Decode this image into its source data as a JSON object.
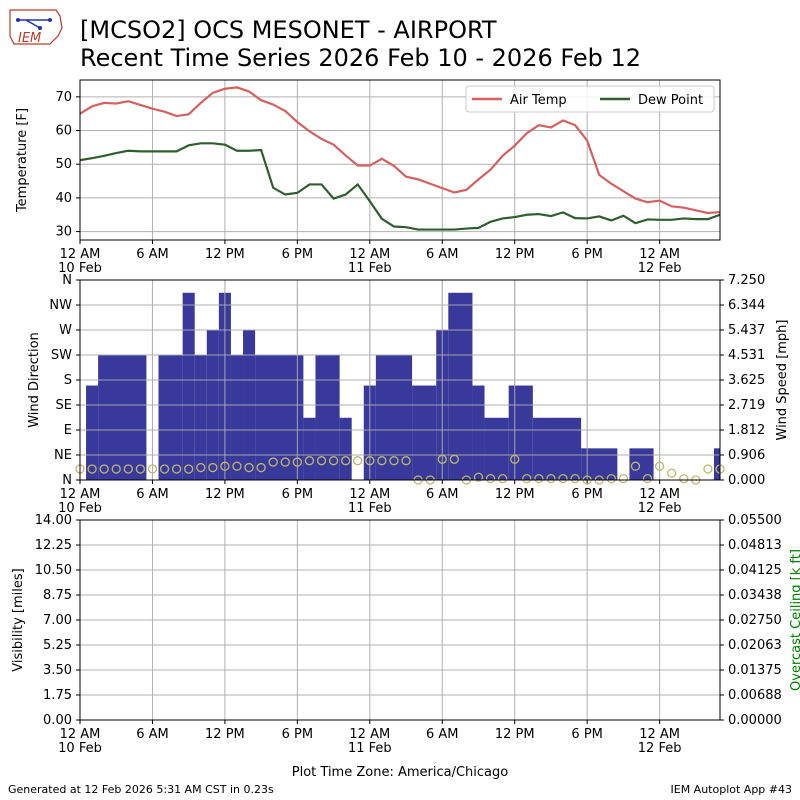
{
  "header": {
    "title_line1": "[MCSO2] OCS MESONET - AIRPORT",
    "title_line2": "Recent Time Series 2026 Feb 10 - 2026 Feb 12",
    "logo_text": "IEM"
  },
  "footer": {
    "generated": "Generated at 12 Feb 2026 5:31 AM CST in 0.23s",
    "app": "IEM Autoplot App #43",
    "timezone_label": "Plot Time Zone: America/Chicago"
  },
  "colors": {
    "air_temp": "#d65f5f",
    "dew_point": "#2e5e2e",
    "wind_dir": "#333399",
    "wind_speed_marker": "#bdb76b",
    "ceiling_axis": "#008000",
    "grid": "#b0b0b0"
  },
  "chart_data": [
    {
      "type": "line",
      "title": "",
      "xlabel": "",
      "ylabel": "Temperature [F]",
      "xlim": [
        0,
        53
      ],
      "ylim": [
        27.5,
        75
      ],
      "y_ticks": [
        30,
        40,
        50,
        60,
        70
      ],
      "x_ticks": [
        {
          "x": 0,
          "label": "12 AM",
          "sub": "10 Feb"
        },
        {
          "x": 6,
          "label": "6 AM",
          "sub": ""
        },
        {
          "x": 12,
          "label": "12 PM",
          "sub": ""
        },
        {
          "x": 18,
          "label": "6 PM",
          "sub": ""
        },
        {
          "x": 24,
          "label": "12 AM",
          "sub": "11 Feb"
        },
        {
          "x": 30,
          "label": "6 AM",
          "sub": ""
        },
        {
          "x": 36,
          "label": "12 PM",
          "sub": ""
        },
        {
          "x": 42,
          "label": "6 PM",
          "sub": ""
        },
        {
          "x": 48,
          "label": "12 AM",
          "sub": "12 Feb"
        }
      ],
      "legend": "top-right",
      "grid": true,
      "series": [
        {
          "name": "Air Temp",
          "x": [
            0,
            1,
            2,
            3,
            4,
            5,
            6,
            7,
            8,
            9,
            10,
            11,
            12,
            13,
            14,
            15,
            16,
            17,
            18,
            19,
            20,
            21,
            22,
            23,
            24,
            25,
            26,
            27,
            28,
            29,
            30,
            31,
            32,
            33,
            34,
            35,
            36,
            37,
            38,
            39,
            40,
            41,
            42,
            43,
            44,
            45,
            46,
            47,
            48,
            49,
            50,
            51,
            52,
            53
          ],
          "y": [
            65.0,
            67.2,
            68.2,
            68.0,
            68.7,
            67.6,
            66.5,
            65.6,
            64.3,
            64.8,
            68.2,
            71.2,
            72.4,
            72.8,
            71.6,
            69.0,
            67.7,
            65.8,
            62.5,
            59.8,
            57.5,
            55.8,
            52.6,
            49.6,
            49.6,
            51.6,
            49.5,
            46.3,
            45.5,
            44.2,
            42.9,
            41.6,
            42.4,
            45.5,
            48.4,
            52.5,
            55.5,
            59.2,
            61.6,
            60.9,
            63.0,
            61.6,
            57.0,
            46.8,
            44.2,
            42.0,
            39.8,
            38.7,
            39.2,
            37.5,
            37.1,
            36.3,
            35.5,
            35.8
          ]
        },
        {
          "name": "Dew Point",
          "x": [
            0,
            1,
            2,
            3,
            4,
            5,
            6,
            7,
            8,
            9,
            10,
            11,
            12,
            13,
            14,
            15,
            16,
            17,
            18,
            19,
            20,
            21,
            22,
            23,
            24,
            25,
            26,
            27,
            28,
            29,
            30,
            31,
            32,
            33,
            34,
            35,
            36,
            37,
            38,
            39,
            40,
            41,
            42,
            43,
            44,
            45,
            46,
            47,
            48,
            49,
            50,
            51,
            52,
            53
          ],
          "y": [
            51.2,
            51.8,
            52.5,
            53.3,
            54.0,
            53.8,
            53.8,
            53.8,
            53.8,
            55.6,
            56.2,
            56.2,
            55.8,
            54.0,
            54.0,
            54.2,
            43.0,
            41.0,
            41.5,
            44.0,
            44.0,
            39.8,
            41.0,
            44.0,
            39.0,
            33.8,
            31.5,
            31.3,
            30.6,
            30.6,
            30.6,
            30.6,
            30.9,
            31.1,
            32.9,
            33.9,
            34.3,
            35.0,
            35.2,
            34.6,
            35.7,
            34.0,
            33.9,
            34.5,
            33.3,
            34.7,
            32.5,
            33.6,
            33.5,
            33.5,
            33.9,
            33.7,
            33.7,
            35.0
          ]
        }
      ]
    },
    {
      "type": "bar",
      "title": "",
      "xlabel": "",
      "ylabel": "Wind Direction",
      "ylabel_right": "Wind Speed [mph]",
      "xlim": [
        0,
        53
      ],
      "ylim": [
        0,
        360
      ],
      "y_ticks": [
        0,
        45,
        90,
        135,
        180,
        225,
        270,
        315,
        360
      ],
      "y_tick_labels": [
        "N",
        "NE",
        "E",
        "SE",
        "S",
        "SW",
        "W",
        "NW",
        "N"
      ],
      "y2lim": [
        0,
        7.25
      ],
      "y2_tick_labels": [
        "0.000",
        "0.906",
        "1.812",
        "2.719",
        "3.625",
        "4.531",
        "5.437",
        "6.344",
        "7.250"
      ],
      "x_ticks": [
        {
          "x": 0,
          "label": "12 AM",
          "sub": "10 Feb"
        },
        {
          "x": 6,
          "label": "6 AM",
          "sub": ""
        },
        {
          "x": 12,
          "label": "12 PM",
          "sub": ""
        },
        {
          "x": 18,
          "label": "6 PM",
          "sub": ""
        },
        {
          "x": 24,
          "label": "12 AM",
          "sub": "11 Feb"
        },
        {
          "x": 30,
          "label": "6 AM",
          "sub": ""
        },
        {
          "x": 36,
          "label": "12 PM",
          "sub": ""
        },
        {
          "x": 42,
          "label": "6 PM",
          "sub": ""
        },
        {
          "x": 48,
          "label": "12 AM",
          "sub": "12 Feb"
        }
      ],
      "grid": true,
      "wind_direction": {
        "name": "Wind Direction",
        "bins": [
          [
            0.5,
            1.5,
            170
          ],
          [
            1.5,
            5.5,
            225
          ],
          [
            6.5,
            8.5,
            225
          ],
          [
            8.5,
            9.5,
            337
          ],
          [
            9.5,
            10.5,
            225
          ],
          [
            10.5,
            11.5,
            270
          ],
          [
            11.5,
            12.5,
            337
          ],
          [
            12.5,
            13.5,
            225
          ],
          [
            13.5,
            14.5,
            270
          ],
          [
            14.5,
            18.5,
            225
          ],
          [
            18.5,
            19.5,
            112
          ],
          [
            19.5,
            21.5,
            225
          ],
          [
            21.5,
            22.5,
            112
          ],
          [
            23.5,
            24.5,
            170
          ],
          [
            24.5,
            27.5,
            225
          ],
          [
            27.5,
            29.5,
            170
          ],
          [
            29.5,
            30.5,
            270
          ],
          [
            30.5,
            32.5,
            337
          ],
          [
            32.5,
            33.5,
            170
          ],
          [
            33.5,
            35.5,
            112
          ],
          [
            35.5,
            37.5,
            170
          ],
          [
            37.5,
            41.5,
            112
          ],
          [
            41.5,
            44.5,
            57
          ],
          [
            45.5,
            47.5,
            57
          ],
          [
            52.5,
            53,
            57
          ]
        ]
      },
      "wind_speed": {
        "name": "Wind Speed [mph]",
        "x": [
          0,
          1,
          2,
          3,
          4,
          5,
          6,
          7,
          8,
          9,
          10,
          11,
          12,
          13,
          14,
          15,
          16,
          17,
          18,
          19,
          20,
          21,
          22,
          23,
          24,
          25,
          26,
          27,
          28,
          29,
          30,
          31,
          32,
          33,
          34,
          35,
          36,
          37,
          38,
          39,
          40,
          41,
          42,
          43,
          44,
          45,
          46,
          47,
          48,
          49,
          50,
          51,
          52,
          53
        ],
        "y": [
          0.4,
          0.4,
          0.4,
          0.4,
          0.4,
          0.4,
          0.4,
          0.4,
          0.4,
          0.4,
          0.45,
          0.45,
          0.5,
          0.5,
          0.45,
          0.45,
          0.65,
          0.65,
          0.65,
          0.7,
          0.7,
          0.7,
          0.7,
          0.7,
          0.7,
          0.7,
          0.7,
          0.7,
          0.0,
          0.0,
          0.75,
          0.75,
          0.0,
          0.1,
          0.05,
          0.05,
          0.75,
          0.05,
          0.05,
          0.05,
          0.05,
          0.05,
          0.0,
          0.0,
          0.05,
          0.05,
          0.5,
          0.05,
          0.5,
          0.25,
          0.05,
          0.0,
          0.4,
          0.4
        ]
      }
    },
    {
      "type": "line",
      "title": "",
      "xlabel": "Plot Time Zone: America/Chicago",
      "ylabel": "Visibility [miles]",
      "ylabel_right": "Overcast Ceiling [k ft]",
      "xlim": [
        0,
        53
      ],
      "ylim": [
        0,
        14
      ],
      "y_tick_labels": [
        "0.00",
        "1.75",
        "3.50",
        "5.25",
        "7.00",
        "8.75",
        "10.50",
        "12.25",
        "14.00"
      ],
      "y2lim": [
        0,
        0.055
      ],
      "y2_tick_labels": [
        "0.00000",
        "0.00688",
        "0.01375",
        "0.02063",
        "0.02750",
        "0.03438",
        "0.04125",
        "0.04813",
        "0.05500"
      ],
      "x_ticks": [
        {
          "x": 0,
          "label": "12 AM",
          "sub": "10 Feb"
        },
        {
          "x": 6,
          "label": "6 AM",
          "sub": ""
        },
        {
          "x": 12,
          "label": "12 PM",
          "sub": ""
        },
        {
          "x": 18,
          "label": "6 PM",
          "sub": ""
        },
        {
          "x": 24,
          "label": "12 AM",
          "sub": "11 Feb"
        },
        {
          "x": 30,
          "label": "6 AM",
          "sub": ""
        },
        {
          "x": 36,
          "label": "12 PM",
          "sub": ""
        },
        {
          "x": 42,
          "label": "6 PM",
          "sub": ""
        },
        {
          "x": 48,
          "label": "12 AM",
          "sub": "12 Feb"
        }
      ],
      "grid": true,
      "series": []
    }
  ]
}
